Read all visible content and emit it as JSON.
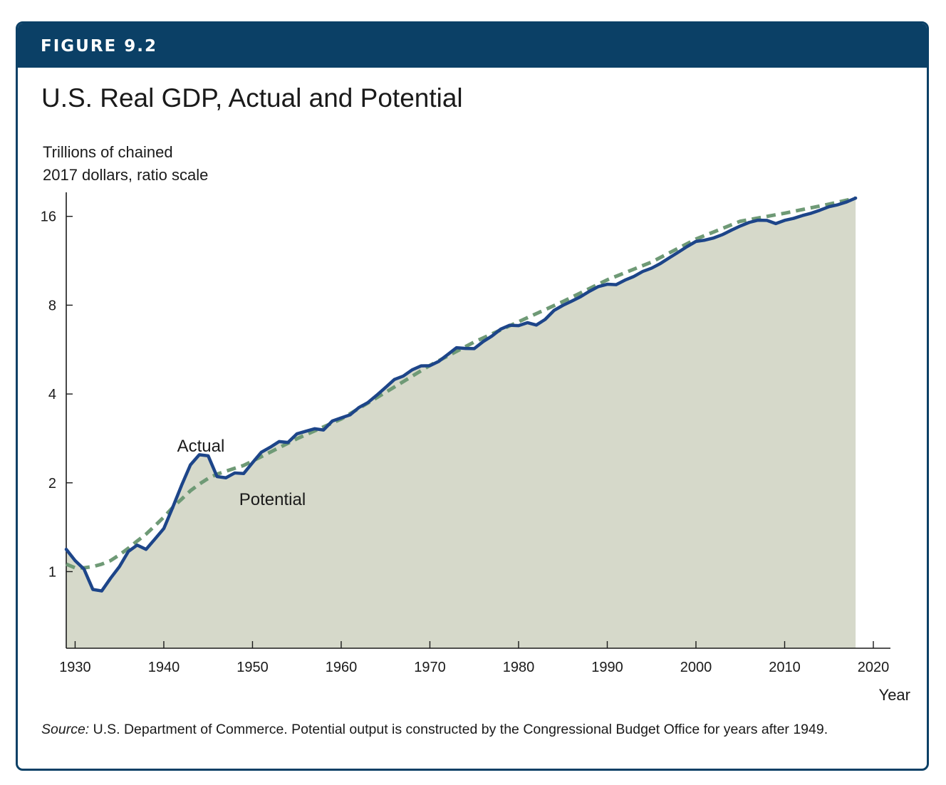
{
  "figure_label": "FIGURE 9.2",
  "source": {
    "prefix": "Source:",
    "text": " U.S. Department of Commerce. Potential output is constructed by the Congressional Budget Office for years after 1949."
  },
  "colors": {
    "frame": "#0b4066",
    "actual": "#1d4589",
    "potential": "#6f9a76",
    "fill": "#d6d9ca"
  },
  "chart_data": {
    "type": "line",
    "title": "U.S. Real GDP, Actual and Potential",
    "ylabel": [
      "Trillions of chained",
      "2017 dollars, ratio scale"
    ],
    "xlabel": "Year",
    "yscale": "log2",
    "ylim": [
      0.55,
      19.3
    ],
    "xlim": [
      1929,
      2020
    ],
    "xticks": [
      1930,
      1940,
      1950,
      1960,
      1970,
      1980,
      1990,
      2000,
      2010,
      2020
    ],
    "yticks": [
      1,
      2,
      4,
      8,
      16
    ],
    "grid": false,
    "annotations": [
      {
        "text": "Actual",
        "series": "Actual",
        "x": 1941.5,
        "y": 2.55
      },
      {
        "text": "Potential",
        "series": "Potential",
        "x": 1948.5,
        "y": 1.68
      }
    ],
    "series": [
      {
        "name": "Actual",
        "style": "solid",
        "x": [
          1929,
          1930,
          1931,
          1932,
          1933,
          1934,
          1935,
          1936,
          1937,
          1938,
          1939,
          1940,
          1941,
          1942,
          1943,
          1944,
          1945,
          1946,
          1947,
          1948,
          1949,
          1950,
          1951,
          1952,
          1953,
          1954,
          1955,
          1956,
          1957,
          1958,
          1959,
          1960,
          1961,
          1962,
          1963,
          1964,
          1965,
          1966,
          1967,
          1968,
          1969,
          1970,
          1971,
          1972,
          1973,
          1974,
          1975,
          1976,
          1977,
          1978,
          1979,
          1980,
          1981,
          1982,
          1983,
          1984,
          1985,
          1986,
          1987,
          1988,
          1989,
          1990,
          1991,
          1992,
          1993,
          1994,
          1995,
          1996,
          1997,
          1998,
          1999,
          2000,
          2001,
          2002,
          2003,
          2004,
          2005,
          2006,
          2007,
          2008,
          2009,
          2010,
          2011,
          2012,
          2013,
          2014,
          2015,
          2016,
          2017,
          2018
        ],
        "values": [
          1.19,
          1.09,
          1.02,
          0.87,
          0.86,
          0.95,
          1.04,
          1.17,
          1.23,
          1.19,
          1.29,
          1.4,
          1.65,
          1.96,
          2.3,
          2.49,
          2.47,
          2.1,
          2.08,
          2.16,
          2.15,
          2.34,
          2.54,
          2.64,
          2.76,
          2.74,
          2.93,
          2.99,
          3.05,
          3.02,
          3.24,
          3.32,
          3.4,
          3.6,
          3.74,
          3.96,
          4.21,
          4.48,
          4.6,
          4.83,
          4.98,
          4.99,
          5.16,
          5.44,
          5.74,
          5.71,
          5.7,
          6.02,
          6.29,
          6.64,
          6.84,
          6.82,
          6.98,
          6.85,
          7.16,
          7.68,
          7.99,
          8.26,
          8.55,
          8.92,
          9.25,
          9.42,
          9.39,
          9.73,
          10.01,
          10.41,
          10.68,
          11.08,
          11.58,
          12.09,
          12.64,
          13.16,
          13.29,
          13.52,
          13.88,
          14.37,
          14.84,
          15.26,
          15.53,
          15.51,
          15.12,
          15.51,
          15.75,
          16.1,
          16.4,
          16.8,
          17.25,
          17.52,
          17.91,
          18.45
        ]
      },
      {
        "name": "Potential",
        "style": "dashed",
        "x": [
          1929,
          1930,
          1931,
          1932,
          1933,
          1934,
          1935,
          1936,
          1937,
          1938,
          1939,
          1940,
          1941,
          1942,
          1943,
          1944,
          1945,
          1946,
          1947,
          1948,
          1949,
          1950,
          1955,
          1960,
          1965,
          1970,
          1975,
          1980,
          1985,
          1990,
          1995,
          2000,
          2005,
          2010,
          2015,
          2018
        ],
        "values": [
          1.06,
          1.03,
          1.03,
          1.04,
          1.06,
          1.09,
          1.14,
          1.2,
          1.27,
          1.34,
          1.43,
          1.53,
          1.65,
          1.76,
          1.88,
          1.98,
          2.07,
          2.14,
          2.19,
          2.24,
          2.29,
          2.37,
          2.82,
          3.29,
          4.05,
          5.0,
          6.0,
          7.03,
          8.23,
          9.75,
          11.2,
          13.4,
          15.4,
          16.4,
          17.6,
          18.45
        ]
      }
    ]
  }
}
